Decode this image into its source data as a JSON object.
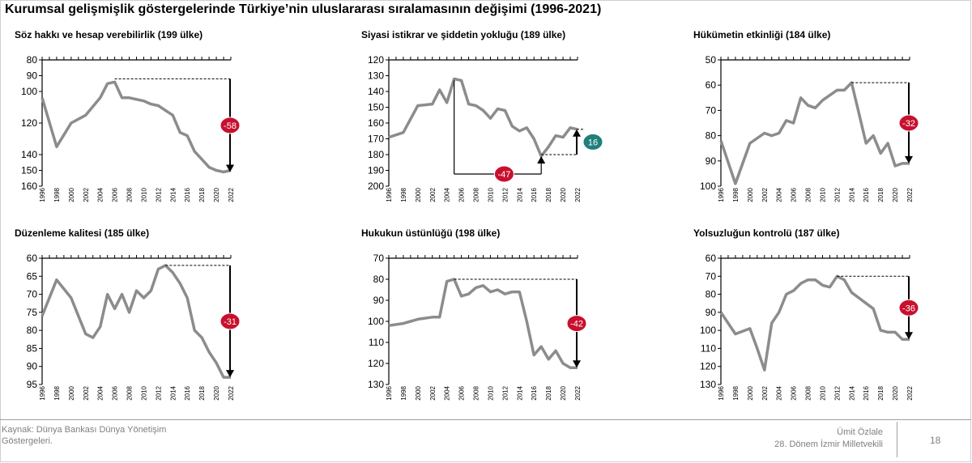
{
  "title": "Kurumsal gelişmişlik göstergelerinde Türkiye’nin uluslararası sıralamasının değişimi (1996-2021)",
  "footer": {
    "source_line1": "Kaynak: Dünya Bankası Dünya Yönetişim",
    "source_line2": "Göstergeleri.",
    "author_name": "Ümit Özlale",
    "author_title": "28. Dönem İzmir Milletvekili",
    "page_number": "18"
  },
  "colors": {
    "line": "#8c8c8c",
    "badge_red": "#c8102e",
    "badge_teal": "#1f7f7a",
    "axis": "#000000",
    "dashed": "#000000"
  },
  "chart_data": [
    {
      "type": "line",
      "title": "Söz hakkı ve hesap verebilirlik (199 ülke)",
      "ylim": [
        80,
        160
      ],
      "inverted": true,
      "yticks": [
        80,
        90,
        100,
        120,
        140,
        150,
        160
      ],
      "x": [
        1996,
        1998,
        2000,
        2002,
        2004,
        2005,
        2006,
        2007,
        2008,
        2010,
        2011,
        2012,
        2013,
        2014,
        2015,
        2016,
        2017,
        2018,
        2019,
        2020,
        2021,
        2022
      ],
      "series": [
        {
          "values": [
            104,
            135,
            120,
            115,
            104,
            95,
            94,
            104,
            104,
            106,
            108,
            109,
            112,
            115,
            126,
            128,
            138,
            143,
            148,
            150,
            151,
            150
          ]
        }
      ],
      "annotation": {
        "label": "-58",
        "color": "badge_red",
        "from": 92,
        "to": 151
      }
    },
    {
      "type": "line",
      "title": "Siyasi istikrar ve şiddetin yokluğu (189 ülke)",
      "ylim": [
        120,
        200
      ],
      "inverted": true,
      "yticks": [
        120,
        130,
        140,
        150,
        160,
        170,
        180,
        190,
        200
      ],
      "x": [
        1996,
        1998,
        2000,
        2002,
        2003,
        2004,
        2005,
        2006,
        2007,
        2008,
        2009,
        2010,
        2011,
        2012,
        2013,
        2014,
        2015,
        2016,
        2017,
        2018,
        2019,
        2020,
        2021,
        2022
      ],
      "series": [
        {
          "values": [
            169,
            166,
            149,
            148,
            139,
            147,
            132,
            133,
            148,
            149,
            152,
            157,
            151,
            152,
            162,
            165,
            163,
            170,
            181,
            175,
            168,
            169,
            163,
            164
          ]
        }
      ],
      "annotations": [
        {
          "label": "-47",
          "color": "badge_red",
          "from": 133,
          "to": 180
        },
        {
          "label": "16",
          "color": "badge_teal",
          "from": 180,
          "to": 164
        }
      ]
    },
    {
      "type": "line",
      "title": "Hükümetin etkinliği (184 ülke)",
      "ylim": [
        50,
        100
      ],
      "inverted": true,
      "yticks": [
        50,
        60,
        70,
        80,
        90,
        100
      ],
      "x": [
        1996,
        1998,
        2000,
        2002,
        2003,
        2004,
        2005,
        2006,
        2007,
        2008,
        2009,
        2010,
        2011,
        2012,
        2013,
        2014,
        2015,
        2016,
        2017,
        2018,
        2019,
        2020,
        2021,
        2022
      ],
      "series": [
        {
          "values": [
            82,
            99,
            83,
            79,
            80,
            79,
            74,
            75,
            65,
            68,
            69,
            66,
            64,
            62,
            62,
            59,
            71,
            83,
            80,
            87,
            83,
            92,
            91,
            91
          ]
        }
      ],
      "annotation": {
        "label": "-32",
        "color": "badge_red",
        "from": 59,
        "to": 91
      }
    },
    {
      "type": "line",
      "title": "Düzenleme kalitesi (185 ülke)",
      "ylim": [
        60,
        95
      ],
      "inverted": true,
      "yticks": [
        60,
        65,
        70,
        75,
        80,
        85,
        90,
        95
      ],
      "x": [
        1996,
        1998,
        2000,
        2002,
        2003,
        2004,
        2005,
        2006,
        2007,
        2008,
        2009,
        2010,
        2011,
        2012,
        2013,
        2014,
        2015,
        2016,
        2017,
        2018,
        2019,
        2020,
        2021,
        2022
      ],
      "series": [
        {
          "values": [
            76,
            66,
            71,
            81,
            82,
            79,
            70,
            74,
            70,
            75,
            69,
            71,
            69,
            63,
            62,
            64,
            67,
            71,
            80,
            82,
            86,
            89,
            93,
            93
          ]
        }
      ],
      "annotation": {
        "label": "-31",
        "color": "badge_red",
        "from": 62,
        "to": 93
      }
    },
    {
      "type": "line",
      "title": "Hukukun üstünlüğü (198 ülke)",
      "ylim": [
        70,
        130
      ],
      "inverted": true,
      "yticks": [
        70,
        80,
        90,
        100,
        110,
        120,
        130
      ],
      "x": [
        1996,
        1998,
        2000,
        2002,
        2003,
        2004,
        2005,
        2006,
        2007,
        2008,
        2009,
        2010,
        2011,
        2012,
        2013,
        2014,
        2015,
        2016,
        2017,
        2018,
        2019,
        2020,
        2021,
        2022
      ],
      "series": [
        {
          "values": [
            102,
            101,
            99,
            98,
            98,
            81,
            80,
            88,
            87,
            84,
            83,
            86,
            85,
            87,
            86,
            86,
            100,
            116,
            112,
            118,
            114,
            120,
            122,
            122
          ]
        }
      ],
      "annotation": {
        "label": "-42",
        "color": "badge_red",
        "from": 80,
        "to": 122
      }
    },
    {
      "type": "line",
      "title": "Yolsuzluğun kontrolü (187 ülke)",
      "ylim": [
        60,
        130
      ],
      "inverted": true,
      "yticks": [
        60,
        70,
        80,
        90,
        100,
        110,
        120,
        130
      ],
      "x": [
        1996,
        1998,
        2000,
        2001,
        2002,
        2003,
        2004,
        2005,
        2006,
        2007,
        2008,
        2009,
        2010,
        2011,
        2012,
        2013,
        2014,
        2015,
        2016,
        2017,
        2018,
        2019,
        2020,
        2021,
        2022
      ],
      "series": [
        {
          "values": [
            90,
            102,
            99,
            110,
            122,
            96,
            90,
            80,
            78,
            74,
            72,
            72,
            75,
            76,
            70,
            72,
            79,
            82,
            85,
            88,
            100,
            101,
            101,
            105,
            105
          ]
        }
      ],
      "annotation": {
        "label": "-36",
        "color": "badge_red",
        "from": 70,
        "to": 105
      }
    }
  ]
}
